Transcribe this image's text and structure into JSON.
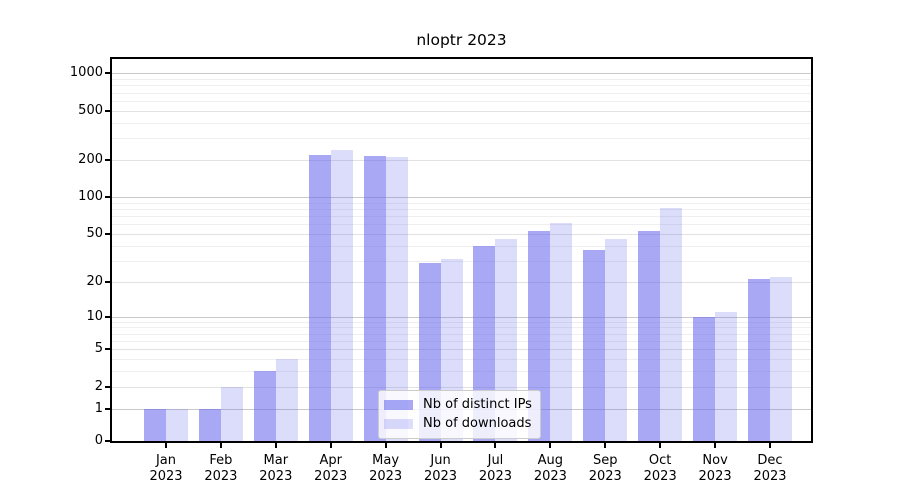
{
  "title": "nloptr 2023",
  "chart_data": {
    "type": "bar",
    "title": "nloptr 2023",
    "categories": [
      "Jan 2023",
      "Feb 2023",
      "Mar 2023",
      "Apr 2023",
      "May 2023",
      "Jun 2023",
      "Jul 2023",
      "Aug 2023",
      "Sep 2023",
      "Oct 2023",
      "Nov 2023",
      "Dec 2023"
    ],
    "series": [
      {
        "name": "Nb of distinct IPs",
        "color": "rgba(102,102,238,0.57)",
        "values": [
          1,
          1,
          3,
          220,
          215,
          29,
          40,
          53,
          37,
          53,
          10,
          21
        ]
      },
      {
        "name": "Nb of downloads",
        "color": "rgba(102,102,238,0.23)",
        "values": [
          1,
          2,
          4,
          240,
          213,
          31,
          45,
          61,
          45,
          81,
          11,
          22
        ]
      }
    ],
    "xlabel": "",
    "ylabel": "",
    "y_axis": {
      "scale": "log1p",
      "ticks": [
        0,
        1,
        2,
        5,
        10,
        20,
        50,
        100,
        200,
        500,
        1000
      ],
      "ylim": [
        0,
        1300
      ]
    },
    "grid": {
      "on": true,
      "major_values": [
        1,
        10,
        100,
        1000
      ],
      "labeled_values": [
        2,
        5,
        20,
        50,
        200,
        500
      ],
      "minor_values": [
        3,
        4,
        6,
        7,
        8,
        9,
        30,
        40,
        60,
        70,
        80,
        90,
        300,
        400,
        600,
        700,
        800,
        900
      ],
      "major_color": "#c9c9c9",
      "labeled_color": "#e2e2e2",
      "minor_color": "#efefef"
    },
    "legend_position": "lower center"
  }
}
